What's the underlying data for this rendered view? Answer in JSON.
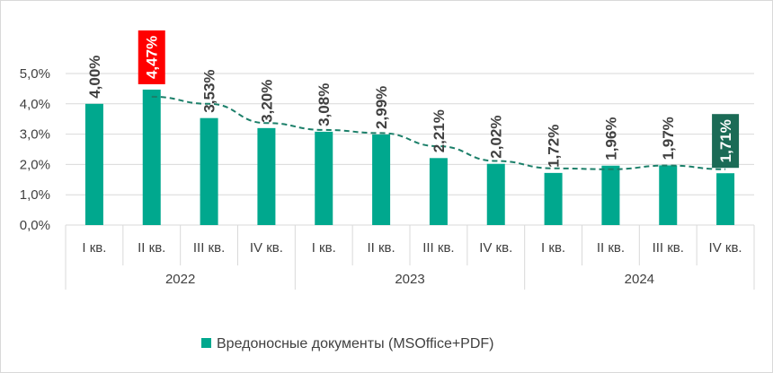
{
  "chart_data": {
    "type": "bar",
    "title": "",
    "xlabel": "",
    "ylabel": "",
    "ylim": [
      0,
      5
    ],
    "yticks": [
      "0,0%",
      "1,0%",
      "2,0%",
      "3,0%",
      "4,0%",
      "5,0%"
    ],
    "groups": [
      {
        "year": "2022",
        "quarters": [
          "I кв.",
          "II кв.",
          "III кв.",
          "IV кв."
        ]
      },
      {
        "year": "2023",
        "quarters": [
          "I кв.",
          "II кв.",
          "III кв.",
          "IV кв."
        ]
      },
      {
        "year": "2024",
        "quarters": [
          "I кв.",
          "II кв.",
          "III кв.",
          "IV кв."
        ]
      }
    ],
    "series": [
      {
        "name": "Вредоносные документы (MSOffice+PDF)",
        "color": "#00a88e",
        "values": [
          4.0,
          4.47,
          3.53,
          3.2,
          3.08,
          2.99,
          2.21,
          2.02,
          1.72,
          1.96,
          1.97,
          1.71
        ],
        "labels": [
          "4,00%",
          "4,47%",
          "3,53%",
          "3,20%",
          "3,08%",
          "2,99%",
          "2,21%",
          "2,02%",
          "1,72%",
          "1,96%",
          "1,97%",
          "1,71%"
        ]
      }
    ],
    "trendline": {
      "type": "moving-average",
      "style": "dashed",
      "color": "#1b7f69"
    },
    "highlights": [
      {
        "index": 1,
        "color": "#ff0000"
      },
      {
        "index": 11,
        "color": "#1b6b56"
      }
    ],
    "legend": "bottom",
    "grid": true
  }
}
